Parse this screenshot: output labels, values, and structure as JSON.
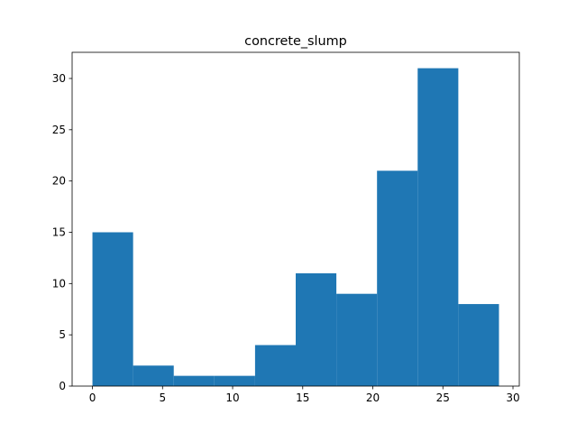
{
  "chart_data": {
    "type": "bar",
    "title": "concrete_slump",
    "xlabel": "",
    "ylabel": "",
    "bin_edges": [
      0,
      2.9,
      5.8,
      8.7,
      11.6,
      14.5,
      17.4,
      20.3,
      23.2,
      26.1,
      29.0
    ],
    "values": [
      15,
      2,
      1,
      1,
      4,
      11,
      9,
      21,
      31,
      8
    ],
    "xlim": [
      -1.45,
      30.45
    ],
    "ylim": [
      0,
      32.55
    ],
    "xticks": [
      0,
      5,
      10,
      15,
      20,
      25,
      30
    ],
    "yticks": [
      0,
      5,
      10,
      15,
      20,
      25,
      30
    ],
    "bar_color": "#1f77b4",
    "grid": false,
    "legend": "none"
  }
}
